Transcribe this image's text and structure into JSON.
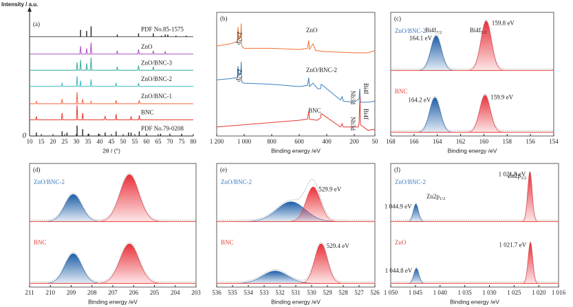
{
  "chart_data": [
    {
      "type": "xrd",
      "panel_label": "(a)",
      "ylabel": "Intensity / a.u.",
      "xlabel": "2θ / (°)",
      "xlim": [
        10,
        80
      ],
      "xticks": [
        10,
        15,
        20,
        25,
        30,
        35,
        40,
        45,
        50,
        55,
        60,
        65,
        70,
        75,
        80
      ],
      "ylim": [
        0,
        100
      ],
      "yticks": [
        0
      ],
      "series": [
        {
          "name": "PDF No.85-1575",
          "style": "sticks",
          "color": "#222222",
          "baseline": 86,
          "x": [
            31.8,
            34.4,
            36.3,
            47.5,
            56.6,
            62.9,
            66.4,
            68,
            69.1,
            72.6,
            77
          ],
          "values": [
            92,
            91,
            95,
            88,
            89,
            89,
            87,
            88,
            88,
            87,
            87
          ]
        },
        {
          "name": "ZnO",
          "style": "line",
          "color": "#a94fc0",
          "x": [
            10,
            31.5,
            31.8,
            32.1,
            34.1,
            34.4,
            34.7,
            36.0,
            36.3,
            36.6,
            47.2,
            47.5,
            47.8,
            56.3,
            56.6,
            56.9,
            62.6,
            62.9,
            63.2,
            67.7,
            68,
            68.3,
            80
          ],
          "values": [
            71,
            71,
            78,
            71,
            71,
            76,
            71,
            71,
            81,
            71,
            71,
            74,
            71,
            71,
            75,
            71,
            71,
            74,
            71,
            71,
            73,
            71,
            71
          ]
        },
        {
          "name": "ZnO/BNC-3",
          "style": "line",
          "color": "#32a89a",
          "x": [
            10,
            30.0,
            30.3,
            30.6,
            31.5,
            31.8,
            32.1,
            34.1,
            34.4,
            34.7,
            36.0,
            36.3,
            36.6,
            47.2,
            47.5,
            47.8,
            56.3,
            56.6,
            56.9,
            62.6,
            62.9,
            63.2,
            80
          ],
          "values": [
            57,
            57,
            64,
            57,
            57,
            66,
            57,
            57,
            63,
            57,
            57,
            68,
            57,
            57,
            60,
            57,
            57,
            61,
            57,
            57,
            60,
            57,
            57
          ]
        },
        {
          "name": "ZnO/BNC-2",
          "style": "line",
          "color": "#3bb8c4",
          "x": [
            10,
            23.6,
            23.9,
            24.2,
            30.0,
            30.3,
            30.6,
            31.5,
            31.8,
            32.1,
            36.0,
            36.3,
            36.6,
            46.7,
            47.0,
            47.3,
            56.3,
            56.6,
            56.9,
            80
          ],
          "values": [
            43,
            43,
            46,
            43,
            43,
            52,
            43,
            43,
            48,
            43,
            43,
            49,
            43,
            43,
            46,
            43,
            43,
            46,
            43,
            43
          ]
        },
        {
          "name": "ZnO/BNC-1",
          "style": "line",
          "color": "#f0603c",
          "x": [
            10,
            12.6,
            12.9,
            13.2,
            23.6,
            23.9,
            24.2,
            30.0,
            30.3,
            30.6,
            32.4,
            32.7,
            33.0,
            36.0,
            36.3,
            36.6,
            46.7,
            47.0,
            47.3,
            56.6,
            56.9,
            57.2,
            80
          ],
          "values": [
            28,
            28,
            30,
            28,
            28,
            32,
            28,
            28,
            38,
            28,
            28,
            32,
            28,
            28,
            30,
            28,
            28,
            31,
            28,
            28,
            31,
            28,
            28
          ]
        },
        {
          "name": "BNC",
          "style": "line",
          "color": "#e23a2e",
          "x": [
            10,
            12.6,
            12.9,
            13.2,
            23.6,
            23.9,
            24.2,
            30.0,
            30.3,
            30.6,
            32.4,
            32.7,
            33.0,
            41.9,
            42.3,
            42.7,
            46.7,
            47.0,
            47.3,
            53.1,
            53.4,
            53.7,
            56.6,
            56.9,
            57.2,
            80
          ],
          "values": [
            14,
            14,
            17,
            14,
            14,
            20,
            14,
            14,
            27,
            14,
            14,
            20,
            14,
            14,
            17,
            14,
            14,
            19,
            14,
            14,
            17,
            14,
            14,
            18,
            14,
            14
          ]
        },
        {
          "name": "PDF No.79-0208",
          "style": "sticks",
          "color": "#222222",
          "baseline": 0,
          "x": [
            12.9,
            23.9,
            26,
            30.3,
            32.7,
            35.3,
            39.5,
            42.3,
            47,
            52.3,
            53.4,
            56.9,
            60,
            66,
            70,
            75
          ],
          "values": [
            3,
            4,
            3,
            9,
            6,
            2,
            2,
            3,
            4,
            3,
            3,
            4,
            2,
            2,
            2,
            2
          ]
        }
      ]
    },
    {
      "type": "line",
      "panel_label": "(b)",
      "xlabel": "Binding energy /eV",
      "xlim": [
        1200,
        50
      ],
      "xticks": [
        {
          "value": 1200,
          "label": "1 200"
        },
        {
          "value": 1000,
          "label": "1 000"
        },
        800,
        600,
        400,
        200,
        50
      ],
      "ylim": [
        0,
        110
      ],
      "annotations": [
        "Zn2p",
        "Zn2p",
        "Nb3d",
        "Bi4f",
        "Nb3d",
        "Bi4f"
      ],
      "series": [
        {
          "name": "ZnO",
          "color": "#f07030",
          "x": [
            1200,
            1100,
            1050,
            1045,
            1040,
            1025,
            1022,
            1018,
            1000,
            800,
            600,
            540,
            531,
            525,
            500,
            480,
            400,
            200,
            100,
            50
          ],
          "values": [
            80,
            82,
            84,
            97,
            86,
            88,
            100,
            80,
            78,
            78,
            77,
            78,
            85,
            77,
            82,
            76,
            75,
            74,
            74,
            76
          ]
        },
        {
          "name": "ZnO/BNC-2",
          "color": "#3a7fc0",
          "x": [
            1200,
            1100,
            1050,
            1045,
            1040,
            1025,
            1022,
            1018,
            1000,
            800,
            600,
            540,
            531,
            525,
            500,
            465,
            445,
            440,
            300,
            288,
            280,
            200,
            165,
            160,
            155,
            100,
            50
          ],
          "values": [
            50,
            51,
            52,
            62,
            54,
            55,
            66,
            48,
            47,
            46,
            44,
            45,
            52,
            44,
            47,
            42,
            42,
            46,
            32,
            35,
            31,
            30,
            33,
            42,
            30,
            30,
            31
          ]
        },
        {
          "name": "BNC",
          "color": "#e03a30",
          "x": [
            1200,
            1000,
            800,
            700,
            600,
            540,
            531,
            525,
            470,
            445,
            440,
            300,
            288,
            280,
            170,
            165,
            160,
            158,
            155,
            100,
            60,
            50
          ],
          "values": [
            8,
            10,
            12,
            13,
            14,
            15,
            22,
            15,
            14,
            16,
            20,
            8,
            11,
            8,
            8,
            12,
            30,
            35,
            10,
            5,
            6,
            5
          ]
        }
      ]
    },
    {
      "type": "xps",
      "panel_label": "(c)",
      "xlabel": "Binding energy /eV",
      "xlim": [
        168,
        154
      ],
      "xticks": [
        168,
        166,
        164,
        162,
        160,
        158,
        156,
        154
      ],
      "ylim": [
        0,
        100
      ],
      "annotations": [
        {
          "text": "Bi4f",
          "sub": "7/2"
        },
        {
          "text": "Bi4f",
          "sub": "5/2"
        }
      ],
      "spectra": [
        {
          "name": "ZnO/BNC-2",
          "name_color": "#3a78c0",
          "baseline": 53,
          "centers": [
            164.1,
            159.8
          ],
          "heights": [
            28,
            40
          ],
          "widths": [
            0.45,
            0.45
          ],
          "colors": [
            "#1f5fa8",
            "#e8323a"
          ],
          "value_labels": [
            "164.1 eV",
            "159.8 eV"
          ]
        },
        {
          "name": "BNC",
          "name_color": "#e8453c",
          "baseline": 3,
          "centers": [
            164.2,
            159.9
          ],
          "heights": [
            28,
            30
          ],
          "widths": [
            0.45,
            0.45
          ],
          "colors": [
            "#1f5fa8",
            "#e8323a"
          ],
          "value_labels": [
            "164.2 eV",
            "159.9 eV"
          ]
        }
      ]
    },
    {
      "type": "xps",
      "panel_label": "(d)",
      "xlabel": "Binding energy /eV",
      "xlim": [
        211,
        203
      ],
      "xticks": [
        211,
        210,
        209,
        208,
        207,
        206,
        205,
        204,
        203
      ],
      "ylim": [
        0,
        100
      ],
      "spectra": [
        {
          "name": "ZnO/BNC-2",
          "name_color": "#3a78c0",
          "baseline": 53,
          "centers": [
            208.9,
            206.2
          ],
          "heights": [
            22,
            38
          ],
          "widths": [
            0.4,
            0.45
          ],
          "colors": [
            "#1f5fa8",
            "#e8323a"
          ]
        },
        {
          "name": "BNC",
          "name_color": "#e8453c",
          "baseline": 3,
          "centers": [
            208.9,
            206.2
          ],
          "heights": [
            24,
            32
          ],
          "widths": [
            0.4,
            0.45
          ],
          "colors": [
            "#1f5fa8",
            "#e8323a"
          ]
        }
      ]
    },
    {
      "type": "xps",
      "panel_label": "(e)",
      "xlabel": "Binding energy /eV",
      "xlim": [
        536,
        526
      ],
      "xticks": [
        536,
        535,
        534,
        533,
        532,
        531,
        530,
        529,
        528,
        527,
        526
      ],
      "ylim": [
        0,
        100
      ],
      "spectra": [
        {
          "name": "ZnO/BNC-2",
          "name_color": "#3a78c0",
          "baseline": 53,
          "centers": [
            531.3,
            529.9
          ],
          "heights": [
            16,
            28
          ],
          "widths": [
            0.9,
            0.45
          ],
          "colors": [
            "#1f5fa8",
            "#e8323a"
          ],
          "value_labels": [
            null,
            "529.9 eV"
          ]
        },
        {
          "name": "BNC",
          "name_color": "#e8453c",
          "baseline": 3,
          "centers": [
            532.3,
            529.4
          ],
          "heights": [
            10,
            32
          ],
          "widths": [
            0.8,
            0.4
          ],
          "colors": [
            "#1f5fa8",
            "#e8323a"
          ],
          "value_labels": [
            null,
            "529.4 eV"
          ]
        }
      ]
    },
    {
      "type": "xps",
      "panel_label": "(f)",
      "xlabel": "Binding energy /eV",
      "xlim": [
        1050,
        1016
      ],
      "xticks": [
        {
          "value": 1050,
          "label": "1 050"
        },
        {
          "value": 1045,
          "label": "1 045"
        },
        {
          "value": 1040,
          "label": "1 040"
        },
        {
          "value": 1035,
          "label": "1 035"
        },
        {
          "value": 1030,
          "label": "1 030"
        },
        {
          "value": 1025,
          "label": "1 025"
        },
        {
          "value": 1020,
          "label": "1 020"
        },
        {
          "value": 1016,
          "label": "1 016"
        }
      ],
      "ylim": [
        0,
        100
      ],
      "annotations": [
        {
          "text": "Zn2p",
          "sub": "1/2"
        },
        {
          "text": "Zn2p",
          "sub": "3/2"
        }
      ],
      "spectra": [
        {
          "name": "ZnO/BNC-2",
          "name_color": "#3a78c0",
          "baseline": 53,
          "centers": [
            1044.9,
            1021.8
          ],
          "heights": [
            14,
            40
          ],
          "widths": [
            0.5,
            0.45
          ],
          "colors": [
            "#1f5fa8",
            "#e8323a"
          ],
          "value_labels": [
            "1 044.9 eV",
            "1 021.8 eV"
          ]
        },
        {
          "name": "ZnO",
          "name_color": "#e8453c",
          "baseline": 3,
          "centers": [
            1044.8,
            1021.7
          ],
          "heights": [
            12,
            33
          ],
          "widths": [
            0.5,
            0.45
          ],
          "colors": [
            "#1f5fa8",
            "#e8323a"
          ],
          "value_labels": [
            "1 044.8 eV",
            "1 021.7 eV"
          ]
        }
      ]
    }
  ]
}
